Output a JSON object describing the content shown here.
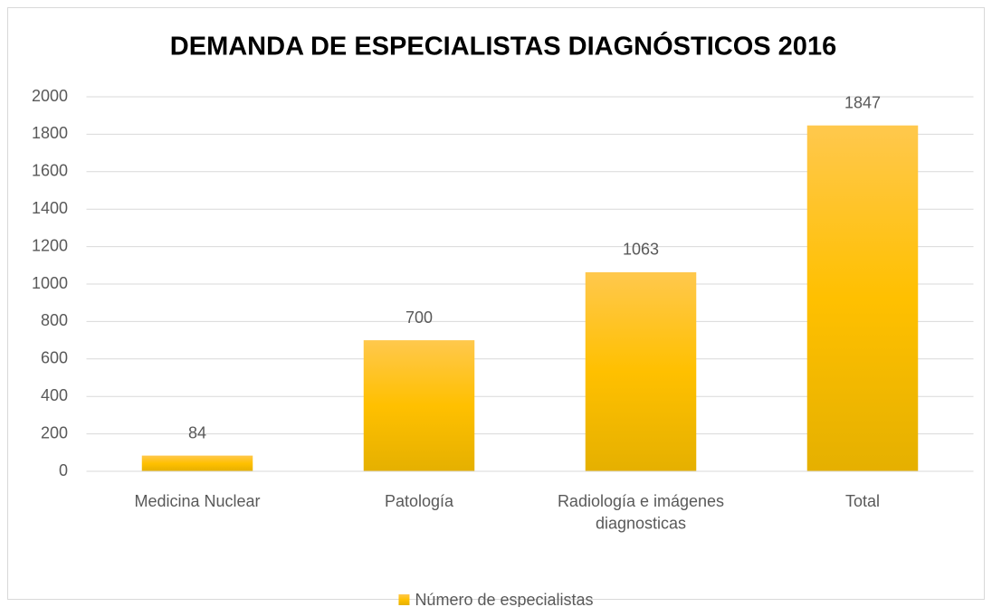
{
  "chart_data": {
    "type": "bar",
    "title": "DEMANDA DE ESPECIALISTAS DIAGNÓSTICOS 2016",
    "categories": [
      "Medicina Nuclear",
      "Patología",
      "Radiología e imágenes diagnosticas",
      "Total"
    ],
    "series": [
      {
        "name": "Número de especialistas",
        "color": "#ffc000",
        "values": [
          84,
          700,
          1063,
          1847
        ]
      }
    ],
    "ylim": [
      0,
      2000
    ],
    "yticks": [
      0,
      200,
      400,
      600,
      800,
      1000,
      1200,
      1400,
      1600,
      1800,
      2000
    ],
    "grid": true,
    "legend": "bottom"
  }
}
